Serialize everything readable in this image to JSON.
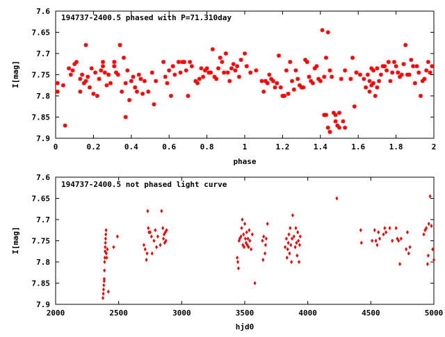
{
  "colors": {
    "series": "#ff0000",
    "axis": "#000000",
    "background": "#ffffff"
  },
  "chart_data": [
    {
      "type": "scatter",
      "title": "194737-2400.5 phased with P=71.310day",
      "xlabel": "phase",
      "ylabel": "I[mag]",
      "xlim": [
        0,
        2
      ],
      "ylim": [
        7.9,
        7.6
      ],
      "y_inverted": true,
      "grid": false,
      "legend": "top-left",
      "marker": "star",
      "xticks": [
        "0",
        "0.2",
        "0.4",
        "0.6",
        "0.8",
        "1",
        "1.2",
        "1.4",
        "1.6",
        "1.8",
        "2"
      ],
      "yticks": [
        "7.6",
        "7.65",
        "7.7",
        "7.75",
        "7.8",
        "7.85",
        "7.9"
      ],
      "points": [
        [
          0.01,
          7.77
        ],
        [
          0.01,
          7.79
        ],
        [
          0.04,
          7.775
        ],
        [
          0.05,
          7.87
        ],
        [
          0.07,
          7.735
        ],
        [
          0.08,
          7.75
        ],
        [
          0.09,
          7.74
        ],
        [
          0.1,
          7.725
        ],
        [
          0.11,
          7.72
        ],
        [
          0.13,
          7.79
        ],
        [
          0.13,
          7.76
        ],
        [
          0.14,
          7.75
        ],
        [
          0.15,
          7.77
        ],
        [
          0.16,
          7.68
        ],
        [
          0.16,
          7.765
        ],
        [
          0.17,
          7.755
        ],
        [
          0.18,
          7.78
        ],
        [
          0.19,
          7.735
        ],
        [
          0.2,
          7.795
        ],
        [
          0.21,
          7.745
        ],
        [
          0.22,
          7.8
        ],
        [
          0.23,
          7.76
        ],
        [
          0.24,
          7.74
        ],
        [
          0.25,
          7.73
        ],
        [
          0.25,
          7.72
        ],
        [
          0.26,
          7.745
        ],
        [
          0.27,
          7.775
        ],
        [
          0.28,
          7.75
        ],
        [
          0.29,
          7.77
        ],
        [
          0.31,
          7.72
        ],
        [
          0.31,
          7.73
        ],
        [
          0.32,
          7.745
        ],
        [
          0.33,
          7.75
        ],
        [
          0.34,
          7.68
        ],
        [
          0.35,
          7.79
        ],
        [
          0.36,
          7.71
        ],
        [
          0.37,
          7.77
        ],
        [
          0.37,
          7.85
        ],
        [
          0.38,
          7.74
        ],
        [
          0.39,
          7.81
        ],
        [
          0.4,
          7.765
        ],
        [
          0.41,
          7.755
        ],
        [
          0.42,
          7.78
        ],
        [
          0.43,
          7.79
        ],
        [
          0.44,
          7.75
        ],
        [
          0.45,
          7.76
        ],
        [
          0.46,
          7.795
        ],
        [
          0.47,
          7.765
        ],
        [
          0.49,
          7.79
        ],
        [
          0.51,
          7.745
        ],
        [
          0.52,
          7.82
        ],
        [
          0.53,
          7.765
        ],
        [
          0.57,
          7.72
        ],
        [
          0.58,
          7.755
        ],
        [
          0.59,
          7.77
        ],
        [
          0.6,
          7.74
        ],
        [
          0.61,
          7.8
        ],
        [
          0.62,
          7.73
        ],
        [
          0.63,
          7.75
        ],
        [
          0.65,
          7.72
        ],
        [
          0.66,
          7.745
        ],
        [
          0.67,
          7.72
        ],
        [
          0.68,
          7.72
        ],
        [
          0.69,
          7.74
        ],
        [
          0.7,
          7.8
        ],
        [
          0.71,
          7.72
        ],
        [
          0.72,
          7.73
        ],
        [
          0.74,
          7.765
        ],
        [
          0.75,
          7.77
        ],
        [
          0.76,
          7.76
        ],
        [
          0.77,
          7.735
        ],
        [
          0.78,
          7.755
        ],
        [
          0.79,
          7.74
        ],
        [
          0.8,
          7.735
        ],
        [
          0.81,
          7.745
        ],
        [
          0.82,
          7.745
        ],
        [
          0.83,
          7.69
        ],
        [
          0.84,
          7.755
        ],
        [
          0.85,
          7.76
        ],
        [
          0.86,
          7.735
        ],
        [
          0.87,
          7.71
        ],
        [
          0.88,
          7.72
        ],
        [
          0.89,
          7.745
        ],
        [
          0.9,
          7.7
        ],
        [
          0.91,
          7.745
        ],
        [
          0.92,
          7.765
        ],
        [
          0.93,
          7.735
        ],
        [
          0.94,
          7.725
        ],
        [
          0.95,
          7.74
        ],
        [
          0.96,
          7.73
        ],
        [
          0.97,
          7.755
        ],
        [
          0.98,
          7.715
        ],
        [
          1,
          7.7
        ],
        [
          1.01,
          7.73
        ],
        [
          1.03,
          7.745
        ],
        [
          1.06,
          7.74
        ],
        [
          1.09,
          7.765
        ],
        [
          1.1,
          7.79
        ],
        [
          1.11,
          7.765
        ],
        [
          1.12,
          7.77
        ],
        [
          1.13,
          7.75
        ],
        [
          1.14,
          7.76
        ],
        [
          1.15,
          7.765
        ],
        [
          1.16,
          7.78
        ],
        [
          1.17,
          7.77
        ],
        [
          1.18,
          7.705
        ],
        [
          1.19,
          7.78
        ],
        [
          1.2,
          7.8
        ],
        [
          1.21,
          7.8
        ],
        [
          1.22,
          7.74
        ],
        [
          1.23,
          7.795
        ],
        [
          1.24,
          7.72
        ],
        [
          1.25,
          7.765
        ],
        [
          1.26,
          7.785
        ],
        [
          1.27,
          7.74
        ],
        [
          1.28,
          7.76
        ],
        [
          1.29,
          7.775
        ],
        [
          1.3,
          7.78
        ],
        [
          1.31,
          7.78
        ],
        [
          1.32,
          7.715
        ],
        [
          1.33,
          7.72
        ],
        [
          1.34,
          7.755
        ],
        [
          1.35,
          7.765
        ],
        [
          1.36,
          7.77
        ],
        [
          1.37,
          7.735
        ],
        [
          1.38,
          7.73
        ],
        [
          1.39,
          7.76
        ],
        [
          1.4,
          7.765
        ],
        [
          1.41,
          7.645
        ],
        [
          1.42,
          7.755
        ],
        [
          1.42,
          7.845
        ],
        [
          1.43,
          7.71
        ],
        [
          1.43,
          7.845
        ],
        [
          1.44,
          7.65
        ],
        [
          1.44,
          7.875
        ],
        [
          1.45,
          7.885
        ],
        [
          1.45,
          7.74
        ],
        [
          1.46,
          7.755
        ],
        [
          1.47,
          7.84
        ],
        [
          1.48,
          7.86
        ],
        [
          1.48,
          7.845
        ],
        [
          1.49,
          7.87
        ],
        [
          1.5,
          7.84
        ],
        [
          1.5,
          7.875
        ],
        [
          1.51,
          7.76
        ],
        [
          1.52,
          7.86
        ],
        [
          1.53,
          7.74
        ],
        [
          1.53,
          7.875
        ],
        [
          1.56,
          7.76
        ],
        [
          1.57,
          7.71
        ],
        [
          1.58,
          7.825
        ],
        [
          1.59,
          7.745
        ],
        [
          1.61,
          7.75
        ],
        [
          1.63,
          7.76
        ],
        [
          1.64,
          7.78
        ],
        [
          1.65,
          7.75
        ],
        [
          1.66,
          7.765
        ],
        [
          1.66,
          7.79
        ],
        [
          1.67,
          7.735
        ],
        [
          1.67,
          7.775
        ],
        [
          1.68,
          7.74
        ],
        [
          1.68,
          7.77
        ],
        [
          1.69,
          7.8
        ],
        [
          1.7,
          7.735
        ],
        [
          1.7,
          7.78
        ],
        [
          1.71,
          7.765
        ],
        [
          1.72,
          7.75
        ],
        [
          1.73,
          7.73
        ],
        [
          1.74,
          7.73
        ],
        [
          1.75,
          7.74
        ],
        [
          1.76,
          7.72
        ],
        [
          1.77,
          7.765
        ],
        [
          1.78,
          7.745
        ],
        [
          1.79,
          7.72
        ],
        [
          1.8,
          7.73
        ],
        [
          1.81,
          7.745
        ],
        [
          1.82,
          7.755
        ],
        [
          1.83,
          7.75
        ],
        [
          1.84,
          7.725
        ],
        [
          1.85,
          7.68
        ],
        [
          1.86,
          7.75
        ],
        [
          1.87,
          7.75
        ],
        [
          1.88,
          7.715
        ],
        [
          1.89,
          7.73
        ],
        [
          1.9,
          7.77
        ],
        [
          1.91,
          7.73
        ],
        [
          1.92,
          7.745
        ],
        [
          1.93,
          7.8
        ],
        [
          1.94,
          7.765
        ],
        [
          1.95,
          7.76
        ],
        [
          1.96,
          7.74
        ],
        [
          1.97,
          7.72
        ],
        [
          1.98,
          7.745
        ],
        [
          1.99,
          7.73
        ]
      ]
    },
    {
      "type": "scatter",
      "title": "194737-2400.5 not phased light curve",
      "xlabel": "hjd0",
      "ylabel": "I[mag]",
      "xlim": [
        2000,
        5000
      ],
      "ylim": [
        7.9,
        7.6
      ],
      "y_inverted": true,
      "grid": false,
      "legend": "top-left",
      "marker": "diamond",
      "xticks": [
        "2000",
        "2500",
        "3000",
        "3500",
        "4000",
        "4500",
        "5000"
      ],
      "yticks": [
        "7.6",
        "7.65",
        "7.7",
        "7.75",
        "7.8",
        "7.85",
        "7.9"
      ],
      "points": [
        [
          2375,
          7.885
        ],
        [
          2378,
          7.875
        ],
        [
          2380,
          7.865
        ],
        [
          2382,
          7.855
        ],
        [
          2385,
          7.845
        ],
        [
          2385,
          7.84
        ],
        [
          2387,
          7.82
        ],
        [
          2388,
          7.8
        ],
        [
          2390,
          7.79
        ],
        [
          2392,
          7.775
        ],
        [
          2393,
          7.765
        ],
        [
          2395,
          7.755
        ],
        [
          2396,
          7.745
        ],
        [
          2398,
          7.735
        ],
        [
          2400,
          7.725
        ],
        [
          2402,
          7.78
        ],
        [
          2405,
          7.79
        ],
        [
          2410,
          7.77
        ],
        [
          2418,
          7.87
        ],
        [
          2460,
          7.765
        ],
        [
          2490,
          7.74
        ],
        [
          2700,
          7.76
        ],
        [
          2710,
          7.77
        ],
        [
          2720,
          7.795
        ],
        [
          2725,
          7.78
        ],
        [
          2730,
          7.68
        ],
        [
          2735,
          7.72
        ],
        [
          2740,
          7.73
        ],
        [
          2750,
          7.73
        ],
        [
          2760,
          7.74
        ],
        [
          2765,
          7.78
        ],
        [
          2780,
          7.75
        ],
        [
          2790,
          7.725
        ],
        [
          2800,
          7.765
        ],
        [
          2810,
          7.74
        ],
        [
          2830,
          7.76
        ],
        [
          2840,
          7.68
        ],
        [
          2850,
          7.72
        ],
        [
          2855,
          7.745
        ],
        [
          2860,
          7.735
        ],
        [
          2865,
          7.755
        ],
        [
          2870,
          7.73
        ],
        [
          2875,
          7.75
        ],
        [
          2880,
          7.725
        ],
        [
          3440,
          7.79
        ],
        [
          3445,
          7.8
        ],
        [
          3450,
          7.815
        ],
        [
          3455,
          7.75
        ],
        [
          3460,
          7.745
        ],
        [
          3470,
          7.74
        ],
        [
          3475,
          7.72
        ],
        [
          3480,
          7.7
        ],
        [
          3485,
          7.76
        ],
        [
          3490,
          7.735
        ],
        [
          3495,
          7.765
        ],
        [
          3500,
          7.71
        ],
        [
          3505,
          7.745
        ],
        [
          3510,
          7.755
        ],
        [
          3515,
          7.73
        ],
        [
          3520,
          7.76
        ],
        [
          3525,
          7.745
        ],
        [
          3530,
          7.765
        ],
        [
          3535,
          7.725
        ],
        [
          3540,
          7.75
        ],
        [
          3550,
          7.77
        ],
        [
          3560,
          7.735
        ],
        [
          3580,
          7.85
        ],
        [
          3640,
          7.75
        ],
        [
          3645,
          7.795
        ],
        [
          3650,
          7.74
        ],
        [
          3660,
          7.78
        ],
        [
          3665,
          7.76
        ],
        [
          3670,
          7.745
        ],
        [
          3680,
          7.71
        ],
        [
          3820,
          7.765
        ],
        [
          3830,
          7.745
        ],
        [
          3835,
          7.79
        ],
        [
          3840,
          7.77
        ],
        [
          3845,
          7.755
        ],
        [
          3850,
          7.735
        ],
        [
          3855,
          7.78
        ],
        [
          3860,
          7.72
        ],
        [
          3865,
          7.76
        ],
        [
          3870,
          7.8
        ],
        [
          3875,
          7.745
        ],
        [
          3880,
          7.69
        ],
        [
          3890,
          7.74
        ],
        [
          3900,
          7.765
        ],
        [
          3905,
          7.72
        ],
        [
          3910,
          7.755
        ],
        [
          3915,
          7.785
        ],
        [
          3920,
          7.73
        ],
        [
          3925,
          7.75
        ],
        [
          3930,
          7.8
        ],
        [
          3935,
          7.76
        ],
        [
          3940,
          7.74
        ],
        [
          4230,
          7.65
        ],
        [
          4420,
          7.725
        ],
        [
          4425,
          7.755
        ],
        [
          4510,
          7.75
        ],
        [
          4530,
          7.725
        ],
        [
          4540,
          7.75
        ],
        [
          4550,
          7.76
        ],
        [
          4560,
          7.73
        ],
        [
          4570,
          7.745
        ],
        [
          4600,
          7.735
        ],
        [
          4610,
          7.72
        ],
        [
          4620,
          7.73
        ],
        [
          4650,
          7.72
        ],
        [
          4670,
          7.75
        ],
        [
          4700,
          7.72
        ],
        [
          4710,
          7.745
        ],
        [
          4720,
          7.75
        ],
        [
          4730,
          7.805
        ],
        [
          4740,
          7.745
        ],
        [
          4780,
          7.77
        ],
        [
          4790,
          7.73
        ],
        [
          4800,
          7.78
        ],
        [
          4810,
          7.765
        ],
        [
          4920,
          7.735
        ],
        [
          4930,
          7.725
        ],
        [
          4940,
          7.72
        ],
        [
          4950,
          7.805
        ],
        [
          4955,
          7.785
        ],
        [
          4960,
          7.71
        ],
        [
          4970,
          7.645
        ],
        [
          4980,
          7.715
        ],
        [
          4990,
          7.77
        ],
        [
          5000,
          7.795
        ]
      ]
    }
  ]
}
